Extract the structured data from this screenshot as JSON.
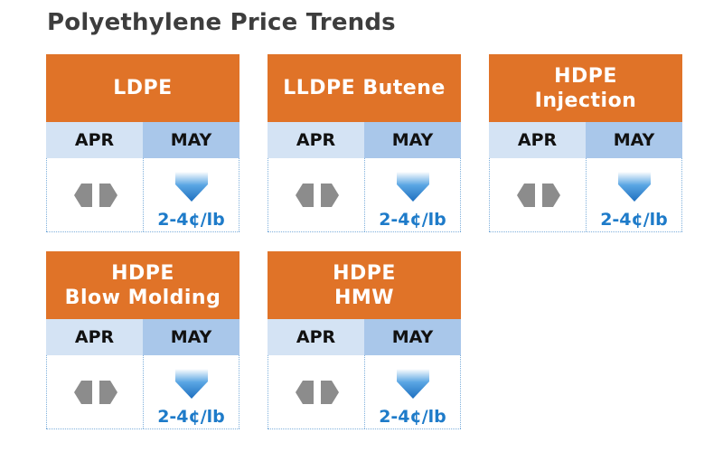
{
  "title": "Polyethylene Price Trends",
  "colors": {
    "header": "#e07328",
    "apr_bg": "#d4e3f4",
    "may_bg": "#a9c7ea",
    "down_arrow": "#1e7bc9",
    "flat_icon": "#8c8c8c"
  },
  "cards": [
    {
      "name_lines": [
        "LDPE"
      ],
      "months": [
        "APR",
        "MAY"
      ],
      "apr_trend": "flat-icon",
      "may_trend": "down-arrow-icon",
      "may_change": "2-4¢/lb"
    },
    {
      "name_lines": [
        "LLDPE Butene"
      ],
      "months": [
        "APR",
        "MAY"
      ],
      "apr_trend": "flat-icon",
      "may_trend": "down-arrow-icon",
      "may_change": "2-4¢/lb"
    },
    {
      "name_lines": [
        "HDPE",
        "Injection"
      ],
      "months": [
        "APR",
        "MAY"
      ],
      "apr_trend": "flat-icon",
      "may_trend": "down-arrow-icon",
      "may_change": "2-4¢/lb"
    },
    {
      "name_lines": [
        "HDPE",
        "Blow Molding"
      ],
      "months": [
        "APR",
        "MAY"
      ],
      "apr_trend": "flat-icon",
      "may_trend": "down-arrow-icon",
      "may_change": "2-4¢/lb"
    },
    {
      "name_lines": [
        "HDPE",
        "HMW"
      ],
      "months": [
        "APR",
        "MAY"
      ],
      "apr_trend": "flat-icon",
      "may_trend": "down-arrow-icon",
      "may_change": "2-4¢/lb"
    }
  ]
}
